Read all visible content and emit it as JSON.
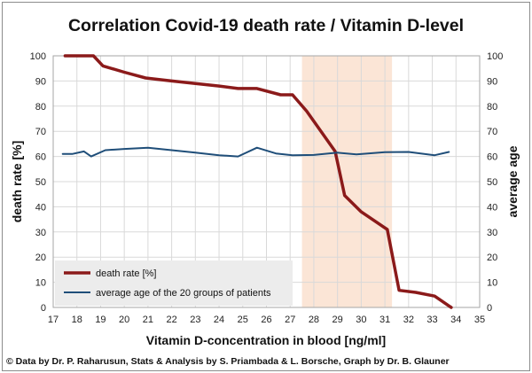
{
  "chart_data": {
    "type": "line",
    "title": "Correlation Covid-19 death rate / Vitamin D-level",
    "xlabel": "Vitamin D-concentration  in blood [ng/ml]",
    "ylabel_left": "death rate [%]",
    "ylabel_right": "average age",
    "xlim": [
      17,
      35
    ],
    "ylim_left": [
      0,
      100
    ],
    "ylim_right": [
      0,
      100
    ],
    "x_ticks": [
      "17",
      "18",
      "19",
      "20",
      "21",
      "22",
      "23",
      "24",
      "25",
      "26",
      "27",
      "28",
      "29",
      "30",
      "31",
      "32",
      "33",
      "34",
      "35"
    ],
    "y_ticks_left": [
      "0",
      "10",
      "20",
      "30",
      "40",
      "50",
      "60",
      "70",
      "80",
      "90",
      "100"
    ],
    "y_ticks_right": [
      "0",
      "10",
      "20",
      "30",
      "40",
      "50",
      "60",
      "70",
      "80",
      "90",
      "100"
    ],
    "grid": true,
    "legend_position": "bottom-left",
    "highlight_band": {
      "x_start": 27.5,
      "x_end": 31.3,
      "color": "#fbe5d6"
    },
    "series": [
      {
        "name": "death rate [%]",
        "axis": "left",
        "color": "#8b1a1a",
        "points": [
          [
            17.5,
            100
          ],
          [
            18.7,
            100
          ],
          [
            19.1,
            96
          ],
          [
            20,
            93.5
          ],
          [
            20.9,
            91.2
          ],
          [
            22,
            90
          ],
          [
            23,
            89
          ],
          [
            24,
            88
          ],
          [
            24.8,
            87
          ],
          [
            25.6,
            87
          ],
          [
            26.6,
            84.5
          ],
          [
            27.1,
            84.5
          ],
          [
            27.7,
            78
          ],
          [
            28.9,
            62
          ],
          [
            29.3,
            44.5
          ],
          [
            30,
            38
          ],
          [
            31.1,
            31
          ],
          [
            31.6,
            6.8
          ],
          [
            32.3,
            6
          ],
          [
            33.1,
            4.5
          ],
          [
            33.8,
            0
          ]
        ]
      },
      {
        "name": "average age of the 20 groups of patients",
        "axis": "right",
        "color": "#1f4e79",
        "points": [
          [
            17.4,
            61
          ],
          [
            17.8,
            61
          ],
          [
            18.3,
            62
          ],
          [
            18.6,
            60
          ],
          [
            19.2,
            62.5
          ],
          [
            20,
            63
          ],
          [
            21,
            63.5
          ],
          [
            22,
            62.5
          ],
          [
            23,
            61.5
          ],
          [
            24,
            60.5
          ],
          [
            24.8,
            60
          ],
          [
            25.6,
            63.5
          ],
          [
            26.4,
            61.2
          ],
          [
            27.1,
            60.5
          ],
          [
            28,
            60.6
          ],
          [
            29,
            61.5
          ],
          [
            29.8,
            60.8
          ],
          [
            31,
            61.7
          ],
          [
            32,
            61.8
          ],
          [
            33.1,
            60.5
          ],
          [
            33.7,
            61.8
          ]
        ]
      }
    ]
  },
  "footer": "© Data by Dr. P. Raharusun, Stats & Analysis by S. Priambada & L. Borsche, Graph by Dr. B. Glauner"
}
